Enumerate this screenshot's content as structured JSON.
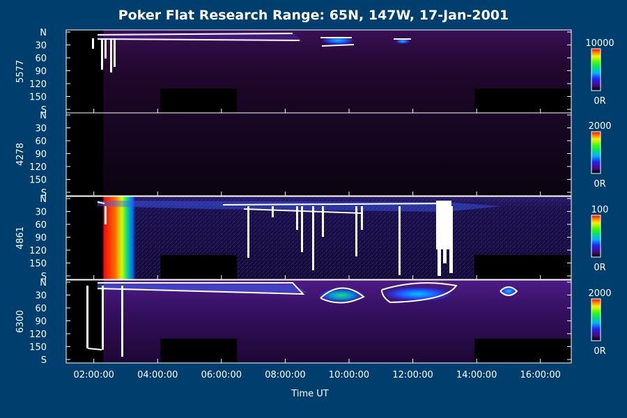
{
  "chart_data": {
    "type": "heatmap",
    "title": "Poker Flat Research Range: 65N, 147W, 17-Jan-2001",
    "xlabel": "Time UT",
    "x_ticks": [
      "02:00:00",
      "04:00:00",
      "06:00:00",
      "08:00:00",
      "10:00:00",
      "12:00:00",
      "14:00:00",
      "16:00:00"
    ],
    "x_range": [
      "01:08:00",
      "16:58:00"
    ],
    "y_ticks": [
      "N",
      "30",
      "60",
      "90",
      "120",
      "150",
      "S"
    ],
    "y_range": [
      0,
      180
    ],
    "grid": false,
    "colormap": "rainbow",
    "panels": [
      {
        "ylabel": "5577",
        "colorbar": {
          "max_label": "10000",
          "min_label": "0R"
        }
      },
      {
        "ylabel": "4278",
        "colorbar": {
          "max_label": "2000",
          "min_label": "0R"
        }
      },
      {
        "ylabel": "4861",
        "colorbar": {
          "max_label": "100",
          "min_label": "0R"
        }
      },
      {
        "ylabel": "6300",
        "colorbar": {
          "max_label": "2000",
          "min_label": "0R"
        }
      }
    ]
  }
}
